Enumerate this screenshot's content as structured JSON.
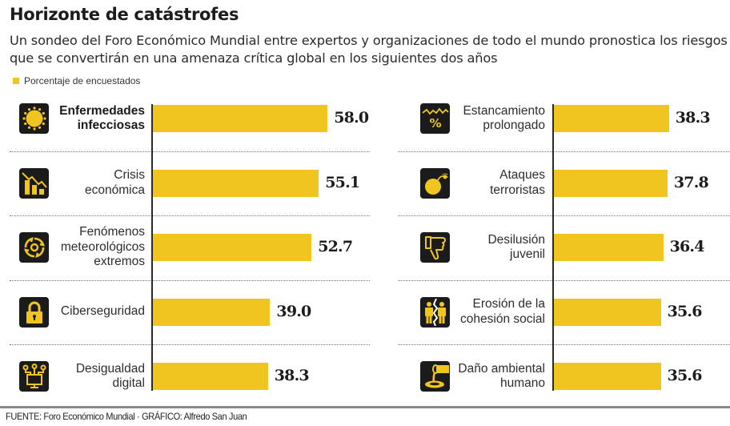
{
  "header": {
    "title": "Horizonte de catástrofes",
    "subtitle": "Un sondeo del Foro Económico Mundial entre expertos y organizaciones de todo el mundo pronostica los riesgos que se convertirán en una amenaza crítica global en los siguientes dos años"
  },
  "legend": {
    "label": "Porcentaje de encuestados"
  },
  "colors": {
    "bar": "#F0C520",
    "icon_bg": "#1b1b1b",
    "icon_fg": "#F0C520",
    "text": "#2a2a2a"
  },
  "footer": {
    "source": "FUENTE: Foro Económico Mundial · GRÁFICO: Alfredo San Juan"
  },
  "chart_data": {
    "type": "bar",
    "orientation": "horizontal",
    "title": "Horizonte de catástrofes",
    "subtitle": "Un sondeo del Foro Económico Mundial entre expertos y organizaciones de todo el mundo pronostica los riesgos que se convertirán en una amenaza crítica global en los siguientes dos años",
    "xlabel": "",
    "ylabel": "",
    "legend": [
      "Porcentaje de encuestados"
    ],
    "legend_position": "top-left",
    "grid": false,
    "xlim": [
      0,
      100
    ],
    "panels": [
      {
        "name": "left",
        "items": [
          {
            "label_lines": [
              "Enfermedades",
              "infecciosas"
            ],
            "value": 58.0,
            "value_text": "58.0",
            "icon": "virus-icon",
            "bold": true
          },
          {
            "label_lines": [
              "Crisis",
              "económica"
            ],
            "value": 55.1,
            "value_text": "55.1",
            "icon": "economic-decline-icon",
            "bold": false
          },
          {
            "label_lines": [
              "Fenómenos",
              "meteorológicos",
              "extremos"
            ],
            "value": 52.7,
            "value_text": "52.7",
            "icon": "hurricane-icon",
            "bold": false
          },
          {
            "label_lines": [
              "Ciberseguridad"
            ],
            "value": 39.0,
            "value_text": "39.0",
            "icon": "padlock-icon",
            "bold": false
          },
          {
            "label_lines": [
              "Desigualdad",
              "digital"
            ],
            "value": 38.3,
            "value_text": "38.3",
            "icon": "computer-network-icon",
            "bold": false
          }
        ]
      },
      {
        "name": "right",
        "items": [
          {
            "label_lines": [
              "Estancamiento",
              "prolongado"
            ],
            "value": 38.3,
            "value_text": "38.3",
            "icon": "percent-stagnation-icon",
            "bold": false
          },
          {
            "label_lines": [
              "Ataques",
              "terroristas"
            ],
            "value": 37.8,
            "value_text": "37.8",
            "icon": "bomb-icon",
            "bold": false
          },
          {
            "label_lines": [
              "Desilusión",
              "juvenil"
            ],
            "value": 36.4,
            "value_text": "36.4",
            "icon": "thumbs-down-icon",
            "bold": false
          },
          {
            "label_lines": [
              "Erosión de la",
              "cohesión social"
            ],
            "value": 35.6,
            "value_text": "35.6",
            "icon": "divided-people-icon",
            "bold": false
          },
          {
            "label_lines": [
              "Daño ambiental",
              "humano"
            ],
            "value": 35.6,
            "value_text": "35.6",
            "icon": "spill-icon",
            "bold": false
          }
        ]
      }
    ]
  }
}
